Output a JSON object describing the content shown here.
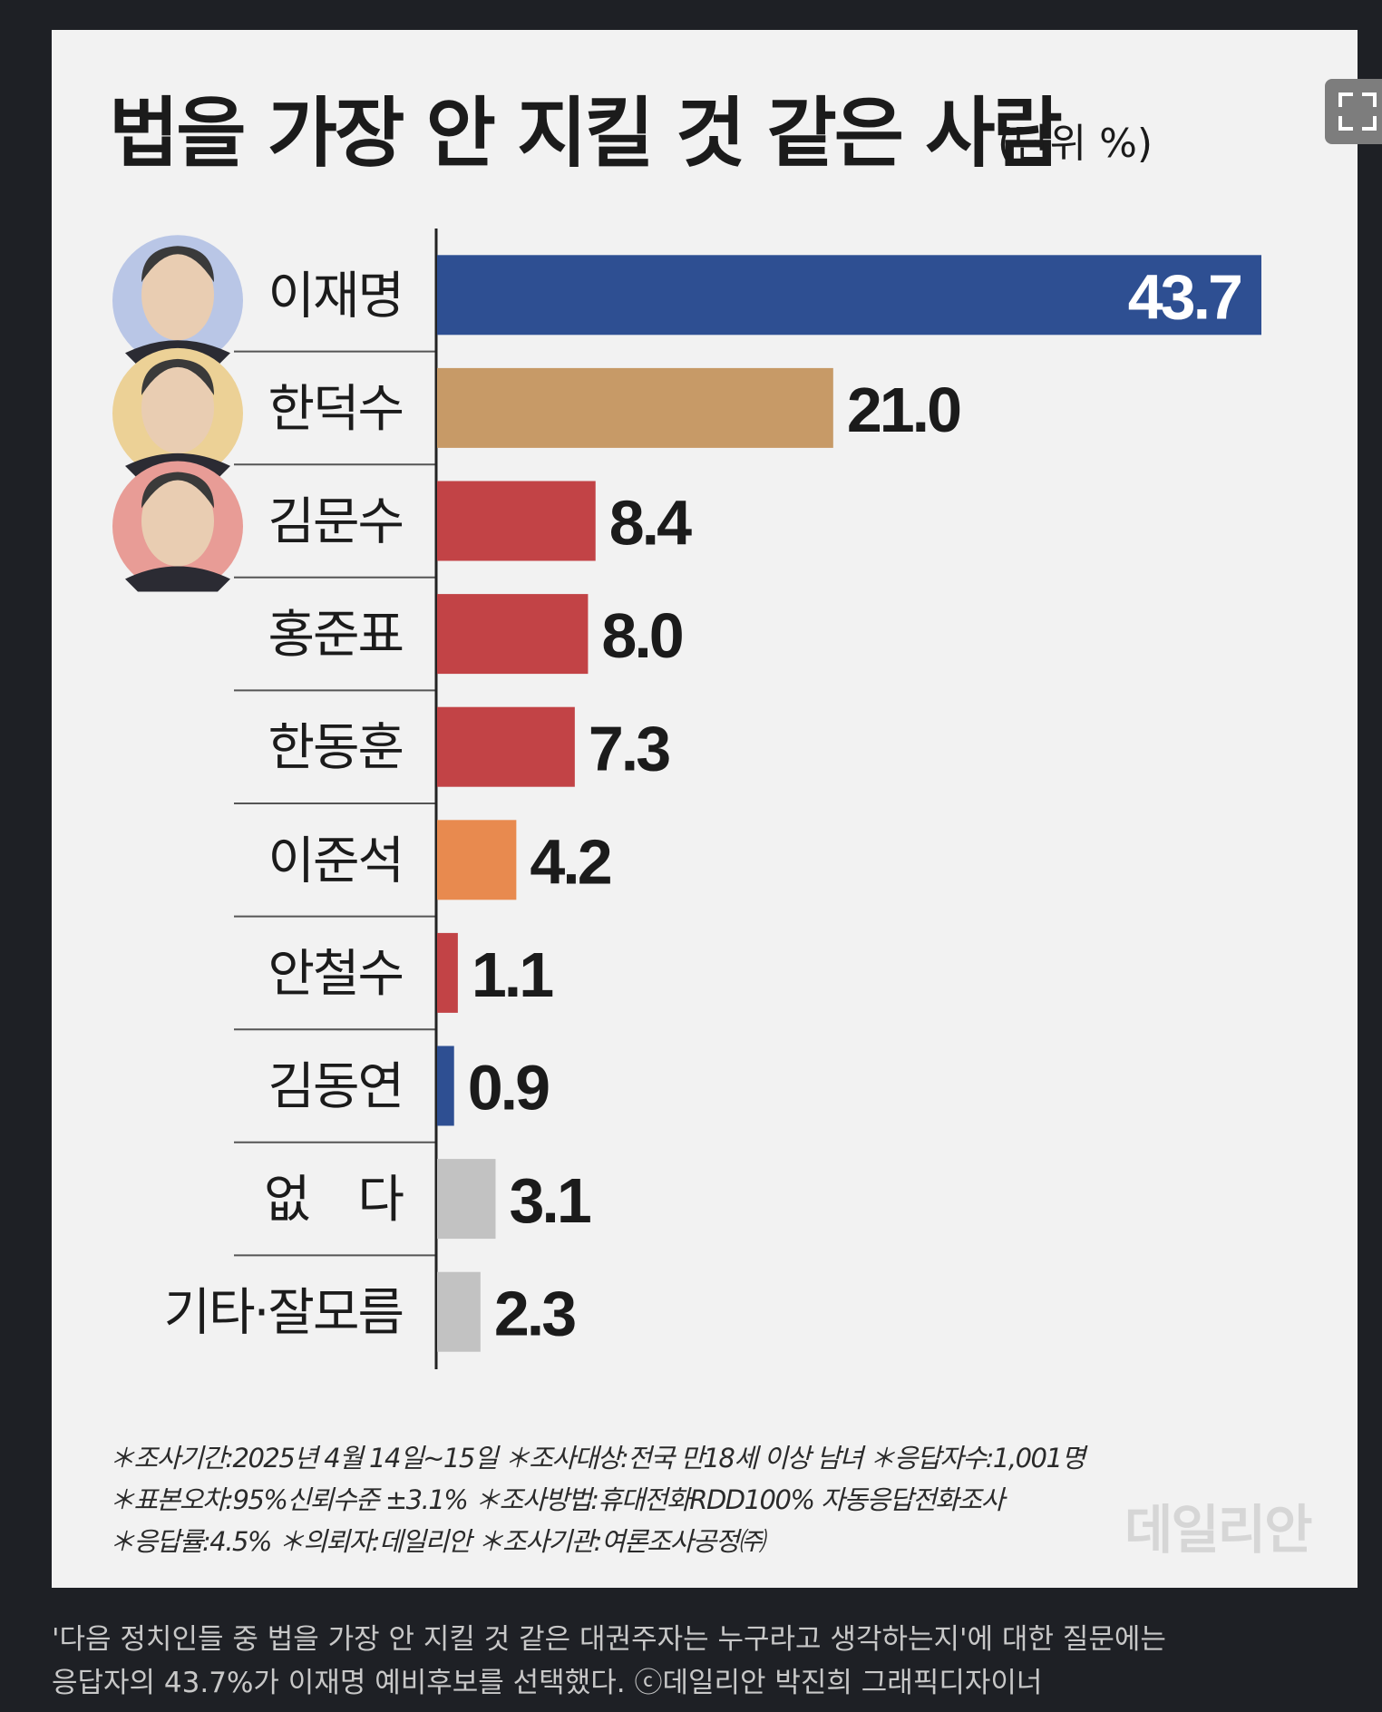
{
  "title": "법을 가장 안 지킬 것 같은 사람",
  "unit": "(단위 %)",
  "chart_data": {
    "type": "bar",
    "orientation": "horizontal",
    "categories": [
      "이재명",
      "한덕수",
      "김문수",
      "홍준표",
      "한동훈",
      "이준석",
      "안철수",
      "김동연",
      "없　다",
      "기타·잘모름"
    ],
    "values": [
      43.7,
      21.0,
      8.4,
      8.0,
      7.3,
      4.2,
      1.1,
      0.9,
      3.1,
      2.3
    ],
    "value_labels": [
      "43.7",
      "21.0",
      "8.4",
      "8.0",
      "7.3",
      "4.2",
      "1.1",
      "0.9",
      "3.1",
      "2.3"
    ],
    "colors": [
      "#2e4f92",
      "#c79a67",
      "#c24346",
      "#c24346",
      "#c24346",
      "#e88a4f",
      "#c24346",
      "#2e4f92",
      "#c2c2c2",
      "#c2c2c2"
    ],
    "photo_colors": [
      "#b9c6e6",
      "#ecd196",
      "#e89c96"
    ],
    "title": "법을 가장 안 지킬 것 같은 사람",
    "unit": "%",
    "xlim": [
      0,
      45
    ],
    "grid": false
  },
  "notes": {
    "line1": "＊조사기간:2025년 4월 14일~15일  ＊조사대상:전국 만18세 이상 남녀  ＊응답자수:1,001명",
    "line2": "＊표본오차:95%신뢰수준 ±3.1%  ＊조사방법:휴대전화RDD100% 자동응답전화조사",
    "line3": "＊응답률:4.5%  ＊의뢰자:데일리안  ＊조사기관:여론조사공정㈜"
  },
  "watermark": "데일리안",
  "caption": {
    "line1": "'다음 정치인들 중 법을 가장 안 지킬 것 같은 대권주자는 누구라고 생각하는지'에 대한 질문에는",
    "line2": "응답자의 43.7%가 이재명 예비후보를 선택했다. ⓒ데일리안 박진희 그래픽디자이너"
  }
}
